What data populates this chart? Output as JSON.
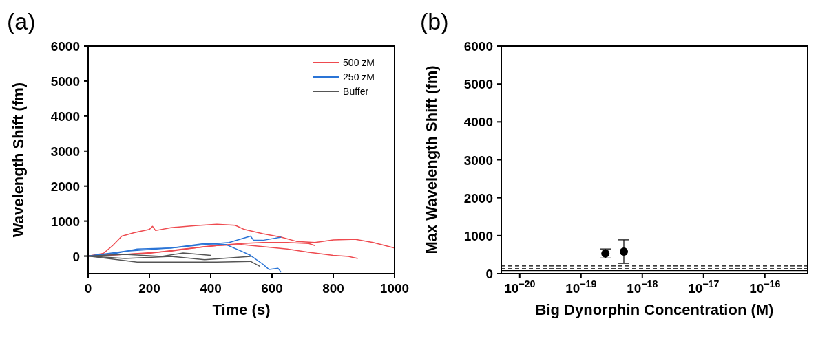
{
  "chart_data": [
    {
      "type": "line",
      "title": "(a)",
      "xlabel": "Time (s)",
      "ylabel": "Wavelength Shift (fm)",
      "xlim": [
        0,
        1000
      ],
      "xticks": [
        0,
        200,
        400,
        600,
        800,
        1000
      ],
      "ylim": [
        -500,
        6000
      ],
      "yticks": [
        0,
        1000,
        2000,
        3000,
        4000,
        5000,
        6000
      ],
      "legend": "top right",
      "series": [
        {
          "name": "500 zM",
          "color": "#ee4a4f",
          "x": [
            0,
            50,
            80,
            110,
            150,
            200,
            210,
            220,
            270,
            350,
            420,
            480,
            510,
            570,
            630,
            680,
            740,
            800,
            870,
            930,
            1000
          ],
          "values": [
            0,
            80,
            300,
            570,
            670,
            760,
            850,
            730,
            810,
            870,
            910,
            880,
            760,
            640,
            540,
            420,
            390,
            460,
            480,
            390,
            230
          ]
        },
        {
          "color": "#ee4a4f",
          "x": [
            0,
            200,
            310,
            420,
            500,
            570,
            650,
            720,
            800,
            850,
            880
          ],
          "values": [
            0,
            80,
            200,
            300,
            330,
            270,
            200,
            110,
            20,
            -10,
            -70
          ]
        },
        {
          "color": "#ee4a4f",
          "x": [
            0,
            120,
            270,
            380,
            500,
            570,
            650,
            720,
            740
          ],
          "values": [
            0,
            50,
            140,
            270,
            360,
            390,
            390,
            360,
            300
          ]
        },
        {
          "name": "250 zM",
          "color": "#2a74d6",
          "x": [
            0,
            90,
            160,
            270,
            380,
            460,
            530,
            540,
            570,
            630
          ],
          "values": [
            0,
            80,
            200,
            230,
            330,
            390,
            570,
            450,
            450,
            540
          ]
        },
        {
          "color": "#2a74d6",
          "x": [
            0,
            120,
            270,
            380,
            450,
            500,
            530,
            570,
            590,
            620,
            630
          ],
          "values": [
            0,
            140,
            230,
            360,
            330,
            140,
            20,
            -230,
            -380,
            -350,
            -460
          ]
        },
        {
          "name": "Buffer",
          "color": "#555555",
          "x": [
            0,
            120,
            240,
            310,
            400
          ],
          "values": [
            0,
            50,
            -10,
            90,
            20
          ]
        },
        {
          "color": "#555555",
          "x": [
            0,
            120,
            270,
            380,
            530
          ],
          "values": [
            0,
            -70,
            -10,
            -100,
            -10
          ]
        },
        {
          "color": "#555555",
          "x": [
            0,
            160,
            310,
            420,
            530,
            560
          ],
          "values": [
            0,
            -170,
            -170,
            -170,
            -150,
            -290
          ]
        }
      ]
    },
    {
      "type": "scatter",
      "title": "(b)",
      "xlabel": "Big Dynorphin Concentration (M)",
      "ylabel": "Max Wavelength Shift (fm)",
      "log": "x",
      "marker": "circle",
      "xlim": [
        5e-21,
        5e-16
      ],
      "xticks": [
        {
          "value": 1e-20,
          "label": "10$^{−20}$"
        },
        {
          "value": 1e-19,
          "label": "10$^{−19}$"
        },
        {
          "value": 1e-18,
          "label": "10$^{−18}$"
        },
        {
          "value": 1e-17,
          "label": "10$^{−17}$"
        },
        {
          "value": 1e-16,
          "label": "10$^{−16}$"
        }
      ],
      "ylim": [
        0,
        6000
      ],
      "yticks": [
        0,
        1000,
        2000,
        3000,
        4000,
        5000,
        6000
      ],
      "series": [
        {
          "color": "#000000",
          "x": [
            2.5e-19,
            5e-19
          ],
          "values": [
            530,
            580
          ],
          "errors": [
            120,
            310
          ]
        }
      ],
      "ref_lines": [
        {
          "axis": "y",
          "value": 200,
          "line_style": "dashed",
          "color": "#000000"
        },
        {
          "axis": "y",
          "value": 130,
          "line_style": "dashed",
          "color": "#000000"
        },
        {
          "axis": "y",
          "value": 80,
          "line_style": "solid",
          "color": "#000000"
        }
      ]
    }
  ]
}
